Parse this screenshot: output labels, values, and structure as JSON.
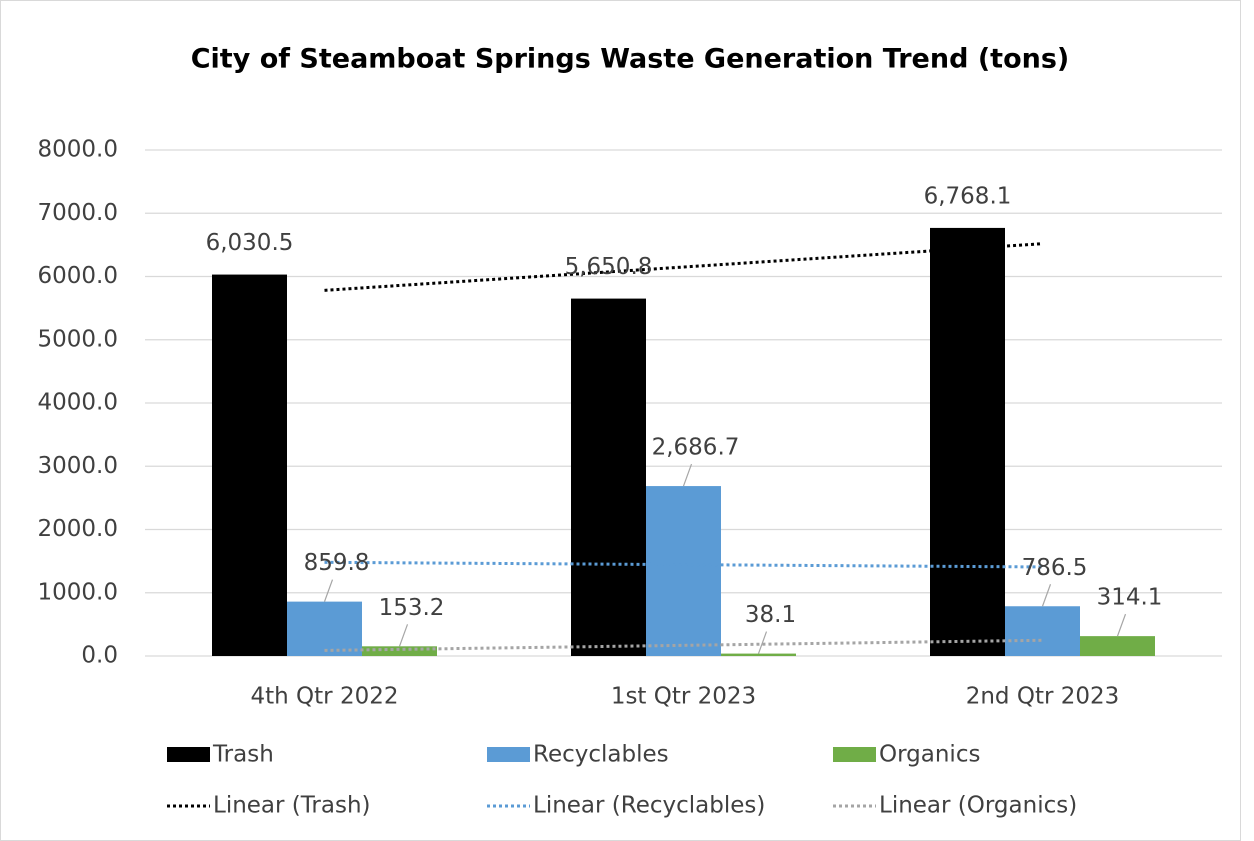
{
  "chart_data": {
    "type": "bar",
    "title": "City of Steamboat Springs Waste Generation Trend (tons)",
    "categories": [
      "4th Qtr 2022",
      "1st Qtr 2023",
      "2nd Qtr 2023"
    ],
    "series": [
      {
        "name": "Trash",
        "color": "#000000",
        "values": [
          6030.5,
          5650.8,
          6768.1
        ],
        "value_labels": [
          "6,030.5",
          "5,650.8",
          "6,768.1"
        ],
        "trendline": "Linear (Trash)",
        "trendline_color": "#000000"
      },
      {
        "name": "Recyclables",
        "color": "#5b9bd5",
        "values": [
          859.8,
          2686.7,
          786.5
        ],
        "value_labels": [
          "859.8",
          "2,686.7",
          "786.5"
        ],
        "trendline": "Linear (Recyclables)",
        "trendline_color": "#5b9bd5"
      },
      {
        "name": "Organics",
        "color": "#70ad47",
        "values": [
          153.2,
          38.1,
          314.1
        ],
        "value_labels": [
          "153.2",
          "38.1",
          "314.1"
        ],
        "trendline": "Linear (Organics)",
        "trendline_color": "#a5a5a5"
      }
    ],
    "ylim": [
      0,
      8000
    ],
    "yticks": [
      {
        "value": 0,
        "label": "0.0"
      },
      {
        "value": 1000,
        "label": "1000.0"
      },
      {
        "value": 2000,
        "label": "2000.0"
      },
      {
        "value": 3000,
        "label": "3000.0"
      },
      {
        "value": 4000,
        "label": "4000.0"
      },
      {
        "value": 5000,
        "label": "5000.0"
      },
      {
        "value": 6000,
        "label": "6000.0"
      },
      {
        "value": 7000,
        "label": "7000.0"
      },
      {
        "value": 8000,
        "label": "8000.0"
      }
    ],
    "grid": true,
    "legend": "bottom"
  }
}
